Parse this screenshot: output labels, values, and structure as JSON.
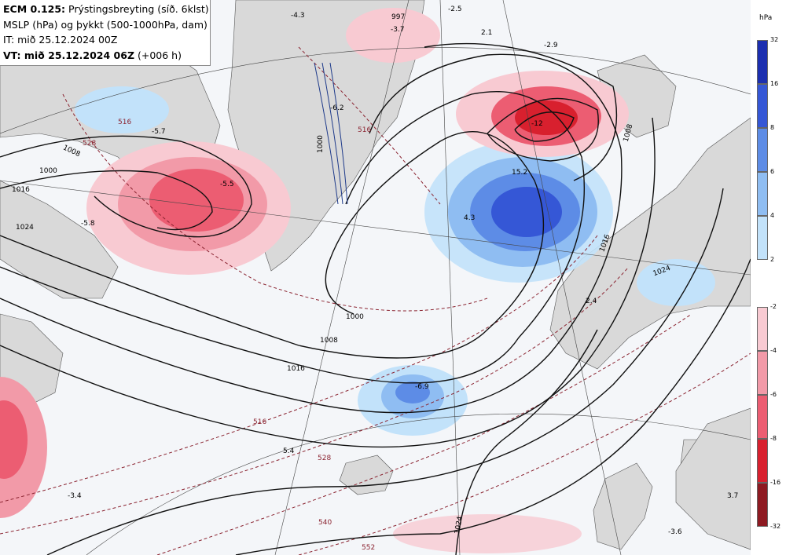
{
  "header": {
    "line1_bold": "ECM 0.125:",
    "line1_rest": " Prýstingsbreyting (síð. 6klst)",
    "line2": "MSLP (hPa) og þykkt (500-1000hPa, dam)",
    "line3": "IT: mið 25.12.2024 00Z",
    "line4_bold": "VT: mið 25.12.2024 06Z",
    "line4_rest": " (+006 h)"
  },
  "legend": {
    "unit": "hPa",
    "blue_ticks": [
      "32",
      "16",
      "8",
      "6",
      "4",
      "2"
    ],
    "red_ticks": [
      "-2",
      "-4",
      "-6",
      "-8",
      "-16",
      "-32"
    ],
    "blue_colors": [
      "#1c2fb0",
      "#3557d6",
      "#5d8ce6",
      "#8fbdf2",
      "#c2e2fa"
    ],
    "red_colors": [
      "#f8cad2",
      "#f29aa8",
      "#ec5d72",
      "#d8202e",
      "#8e1a22"
    ]
  },
  "map_labels": {
    "isobars": [
      "1000",
      "1008",
      "1016",
      "1024",
      "1000",
      "1008",
      "1016",
      "1024",
      "1024",
      "1016",
      "997",
      "1000",
      "1008"
    ],
    "thickness": [
      "516",
      "528",
      "540",
      "552",
      "516",
      "528",
      "516"
    ],
    "pressure_change": [
      "-2.5",
      "2.1",
      "-2.9",
      "-3.7",
      "-6.2",
      "-12",
      "15.2",
      "-5.5",
      "-5.8",
      "-5.7",
      "4.3",
      "2.4",
      "-6.9",
      "5.4",
      "-3.4",
      "-3.6",
      "3.7",
      "-4.3"
    ]
  }
}
